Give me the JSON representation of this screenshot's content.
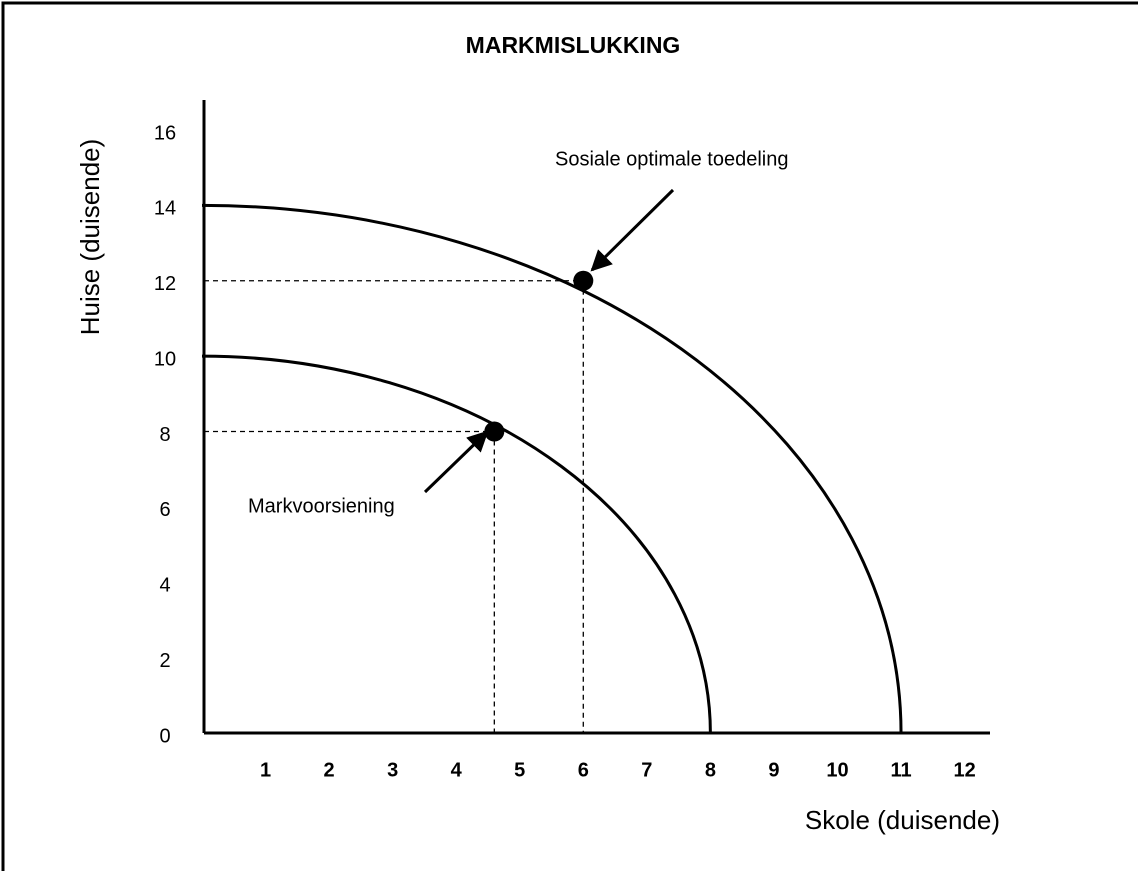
{
  "chart_data": {
    "type": "ppf",
    "title": "MARKMISLUKKING",
    "x_label": "Skole (duisende)",
    "y_label": "Huise (duisende)",
    "xlim": [
      0,
      12.4
    ],
    "ylim": [
      0,
      16
    ],
    "xticks": [
      1,
      2,
      3,
      4,
      5,
      6,
      7,
      8,
      9,
      10,
      11,
      12
    ],
    "yticks": [
      0,
      2,
      4,
      6,
      8,
      10,
      12,
      14,
      16
    ],
    "color": "#000000",
    "curves": [
      {
        "x_max": 8,
        "y_max": 10
      },
      {
        "x_max": 11,
        "y_max": 14
      }
    ],
    "points": [
      {
        "x": 4.6,
        "y": 8,
        "label": "Markvoorsiening"
      },
      {
        "x": 6,
        "y": 12,
        "label": "Sosiale optimale toedeling"
      }
    ]
  }
}
